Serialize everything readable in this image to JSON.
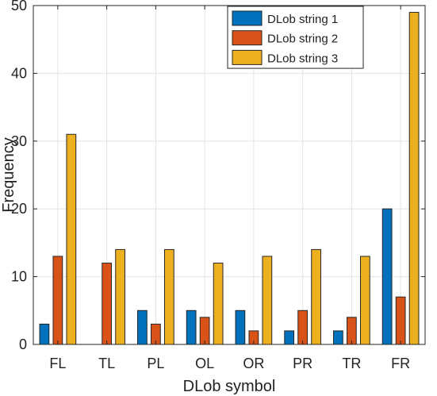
{
  "chart_data": {
    "type": "bar",
    "title": "",
    "xlabel": "DLob symbol",
    "ylabel": "Frequency",
    "ylim": [
      0,
      50
    ],
    "yticks": [
      0,
      10,
      20,
      30,
      40,
      50
    ],
    "grid": true,
    "legend_position": "top-right",
    "categories": [
      "FL",
      "TL",
      "PL",
      "OL",
      "OR",
      "PR",
      "TR",
      "FR"
    ],
    "series": [
      {
        "name": "DLob string 1",
        "color": "#0072BD",
        "values": [
          3,
          0,
          5,
          5,
          5,
          2,
          2,
          20
        ]
      },
      {
        "name": "DLob string 2",
        "color": "#D95319",
        "values": [
          13,
          12,
          3,
          4,
          2,
          5,
          4,
          7
        ]
      },
      {
        "name": "DLob string 3",
        "color": "#EDB120",
        "values": [
          31,
          14,
          14,
          12,
          13,
          14,
          13,
          49
        ]
      }
    ]
  }
}
